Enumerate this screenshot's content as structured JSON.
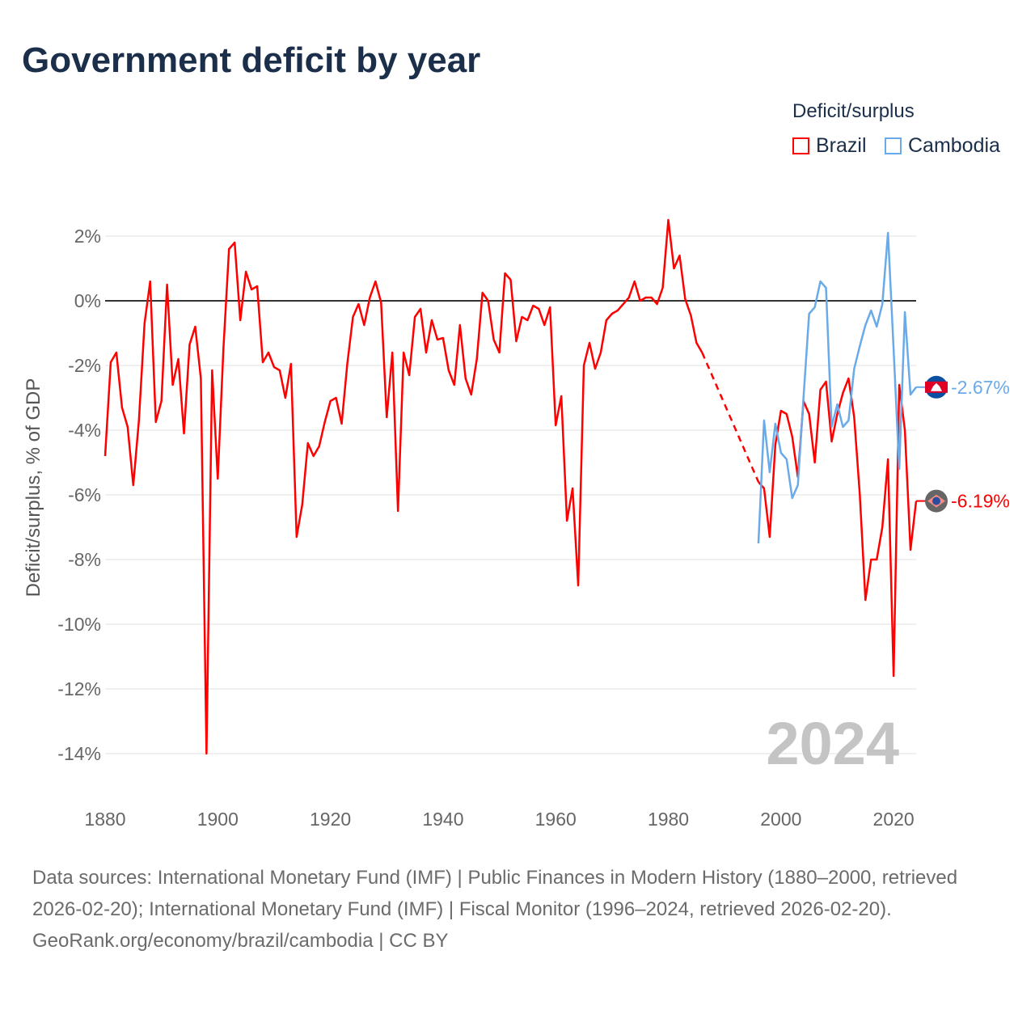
{
  "title": "Government deficit by year",
  "legend": {
    "title": "Deficit/surplus",
    "items": [
      {
        "name": "Brazil",
        "color": "#ff0000"
      },
      {
        "name": "Cambodia",
        "color": "#6aaae8"
      }
    ]
  },
  "chart_data": {
    "type": "line",
    "title": "Government deficit by year",
    "xlabel": "",
    "ylabel": "Deficit/surplus, % of GDP",
    "xlim": [
      1880,
      2024
    ],
    "ylim": [
      -14,
      2.5
    ],
    "x_ticks": [
      1880,
      1900,
      1920,
      1940,
      1960,
      1980,
      2000,
      2020
    ],
    "y_ticks": [
      2,
      0,
      -2,
      -4,
      -6,
      -8,
      -10,
      -12,
      -14
    ],
    "y_tick_labels": [
      "2%",
      "0%",
      "-2%",
      "-4%",
      "-6%",
      "-8%",
      "-10%",
      "-12%",
      "-14%"
    ],
    "grid": true,
    "legend_position": "top-right",
    "current_year": "2024",
    "series": [
      {
        "name": "Brazil",
        "color": "#ff0000",
        "start_year": 1880,
        "values": [
          -4.8,
          -1.9,
          -1.6,
          -3.3,
          -3.9,
          -5.7,
          -3.7,
          -0.7,
          0.6,
          -3.75,
          -3.1,
          0.5,
          -2.6,
          -1.8,
          -4.1,
          -1.35,
          -0.8,
          -2.4,
          -14,
          -2.15,
          -5.5,
          -1.5,
          1.6,
          1.8,
          -0.6,
          0.9,
          0.35,
          0.45,
          -1.9,
          -1.6,
          -2.05,
          -2.15,
          -3.0,
          -1.95,
          -7.3,
          -6.3,
          -4.4,
          -4.8,
          -4.5,
          -3.75,
          -3.1,
          -3.0,
          -3.8,
          -1.95,
          -0.5,
          -0.1,
          -0.75,
          0.1,
          0.6,
          -0.05,
          -3.6,
          -1.6,
          -6.5,
          -1.6,
          -2.3,
          -0.5,
          -0.25,
          -1.6,
          -0.6,
          -1.2,
          -1.15,
          -2.15,
          -2.6,
          -0.75,
          -2.4,
          -2.9,
          -1.8,
          0.25,
          0,
          -1.2,
          -1.6,
          0.85,
          0.65,
          -1.25,
          -0.5,
          -0.6,
          -0.15,
          -0.25,
          -0.75,
          -0.2,
          -3.85,
          -2.95,
          -6.8,
          -5.8,
          -8.8,
          -2.0,
          -1.3,
          -2.1,
          -1.6,
          -0.6,
          -0.4,
          -0.3,
          -0.1,
          0.1,
          0.6,
          0.0,
          0.1,
          0.1,
          -0.1,
          0.4,
          2.5,
          1.0,
          1.4,
          0.05,
          -0.45,
          -1.3,
          -1.6,
          null,
          null,
          null,
          null,
          null,
          null,
          null,
          null,
          null,
          -5.6,
          -5.8,
          -7.3,
          -4.45,
          -3.4,
          -3.5,
          -4.2,
          -5.45,
          -3.1,
          -3.5,
          -5.0,
          -2.75,
          -2.5,
          -4.35,
          -3.5,
          -2.85,
          -2.4,
          -3.6,
          -6.0,
          -9.25,
          -8.0,
          -8.0,
          -7.0,
          -4.9,
          -11.6,
          -2.6,
          -4.0,
          -7.7,
          -6.19
        ],
        "last_label": "-6.19%"
      },
      {
        "name": "Cambodia",
        "color": "#6aaae8",
        "start_year": 1996,
        "values": [
          -7.5,
          -3.7,
          -5.3,
          -3.8,
          -4.7,
          -4.9,
          -6.1,
          -5.7,
          -3.0,
          -0.4,
          -0.2,
          0.6,
          0.4,
          -3.9,
          -3.2,
          -3.9,
          -3.7,
          -2.1,
          -1.4,
          -0.75,
          -0.3,
          -0.8,
          -0.1,
          2.1,
          -1.5,
          -5.2,
          -0.35,
          -2.9,
          -2.67
        ],
        "last_label": "-2.67%"
      }
    ]
  },
  "footer": {
    "sources": "Data sources: International Monetary Fund (IMF) | Public Finances in Modern History (1880–2000, retrieved 2026-02-20); International Monetary Fund (IMF) | Fiscal Monitor (1996–2024, retrieved 2026-02-20).",
    "credit": "GeoRank.org/economy/brazil/cambodia | CC BY"
  }
}
